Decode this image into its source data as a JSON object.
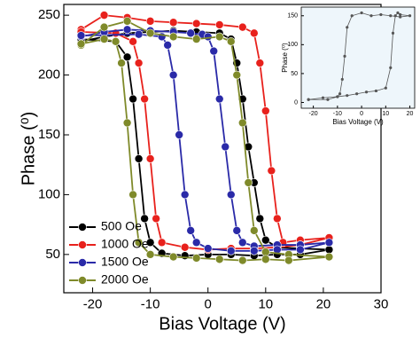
{
  "chart_data": [
    {
      "type": "line",
      "xlabel": "Bias Voltage (V)",
      "ylabel": "Phase (⁰)",
      "xlim": [
        -25,
        30
      ],
      "ylim": [
        18,
        259
      ],
      "xticks": [
        -20,
        -10,
        0,
        10,
        20,
        30
      ],
      "yticks": [
        50,
        100,
        150,
        200,
        250
      ],
      "legend": "lower left",
      "series": [
        {
          "name": "500 Oe",
          "color": "#000000",
          "x": [
            -22,
            -18,
            -14,
            -10,
            -6,
            -2,
            2,
            4,
            5,
            6,
            7,
            8,
            9,
            10,
            12,
            16,
            21,
            16,
            12,
            8,
            4,
            0,
            -4,
            -8,
            -10,
            -11,
            -12,
            -13,
            -14,
            -16,
            -22
          ],
          "values": [
            228,
            232,
            235,
            236,
            237,
            236,
            235,
            230,
            210,
            180,
            140,
            110,
            80,
            62,
            56,
            55,
            54,
            50,
            50,
            49,
            50,
            50,
            49,
            51,
            60,
            80,
            130,
            180,
            215,
            228,
            230
          ]
        },
        {
          "name": "1000 Oe",
          "color": "#e8211c",
          "x": [
            -22,
            -18,
            -14,
            -10,
            -6,
            -2,
            2,
            6,
            8,
            9,
            10,
            11,
            12,
            13,
            16,
            21,
            16,
            12,
            8,
            4,
            0,
            -4,
            -8,
            -9,
            -10,
            -11,
            -12,
            -13,
            -16,
            -22
          ],
          "values": [
            238,
            250,
            248,
            245,
            244,
            243,
            242,
            240,
            235,
            210,
            170,
            120,
            80,
            60,
            62,
            64,
            58,
            56,
            55,
            55,
            54,
            56,
            60,
            80,
            130,
            180,
            210,
            228,
            235,
            236
          ]
        },
        {
          "name": "1500 Oe",
          "color": "#2a2aa8",
          "x": [
            -22,
            -18,
            -14,
            -10,
            -6,
            -3,
            -1,
            0,
            1,
            2,
            3,
            4,
            5,
            6,
            8,
            12,
            16,
            21,
            16,
            12,
            8,
            4,
            0,
            -2,
            -3,
            -4,
            -5,
            -6,
            -7,
            -8,
            -12,
            -22
          ],
          "values": [
            232,
            236,
            238,
            237,
            236,
            235,
            234,
            232,
            220,
            180,
            140,
            100,
            70,
            60,
            57,
            58,
            58,
            60,
            54,
            54,
            53,
            53,
            55,
            60,
            70,
            100,
            150,
            200,
            225,
            232,
            234,
            233
          ]
        },
        {
          "name": "2000 Oe",
          "color": "#7f8a2a",
          "x": [
            -22,
            -18,
            -14,
            -10,
            -6,
            -2,
            2,
            4,
            5,
            6,
            7,
            8,
            10,
            14,
            21,
            14,
            10,
            6,
            2,
            -2,
            -6,
            -10,
            -12,
            -13,
            -14,
            -15,
            -16,
            -18,
            -22
          ],
          "values": [
            225,
            240,
            245,
            235,
            232,
            230,
            232,
            228,
            200,
            160,
            110,
            70,
            52,
            50,
            48,
            45,
            46,
            45,
            46,
            47,
            48,
            50,
            60,
            100,
            160,
            210,
            228,
            230,
            226
          ]
        }
      ]
    },
    {
      "type": "line",
      "xlabel": "Bias Voltage (V)",
      "ylabel": "Phase (⁰)",
      "xlim": [
        -25,
        22
      ],
      "ylim": [
        -10,
        165
      ],
      "xticks": [
        -20,
        -10,
        0,
        10,
        20
      ],
      "yticks": [
        0,
        50,
        100,
        150
      ],
      "series": [
        {
          "color": "#555555",
          "x": [
            -22,
            -16,
            -10,
            -6,
            -2,
            2,
            6,
            10,
            12,
            13,
            14,
            15,
            16,
            20,
            16,
            12,
            8,
            4,
            0,
            -4,
            -6,
            -7,
            -8,
            -9,
            -10,
            -14,
            -22
          ],
          "values": [
            5,
            8,
            10,
            12,
            15,
            18,
            20,
            25,
            60,
            120,
            150,
            155,
            152,
            150,
            148,
            150,
            152,
            150,
            155,
            150,
            130,
            80,
            40,
            15,
            10,
            5,
            5
          ]
        }
      ]
    }
  ]
}
